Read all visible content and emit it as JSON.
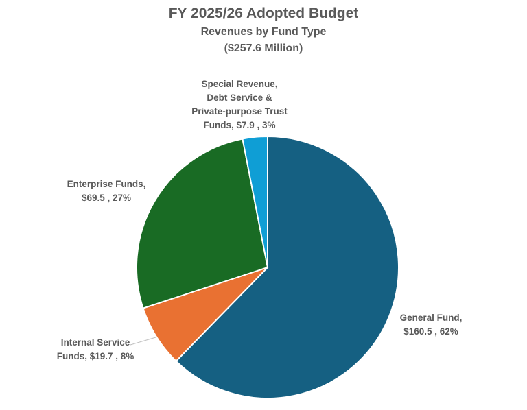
{
  "chart_data": {
    "type": "pie",
    "title": "FY 2025/26 Adopted Budget",
    "subtitle": "Revenues by Fund Type",
    "subtitle2": "($257.6 Million)",
    "slices": [
      {
        "label_lines": [
          "General Fund,",
          "$160.5 , 62%"
        ],
        "name": "General Fund",
        "value": 160.5,
        "percent": 62,
        "color": "#156082"
      },
      {
        "label_lines": [
          "Internal Service",
          "Funds, $19.7 , 8%"
        ],
        "name": "Internal Service Funds",
        "value": 19.7,
        "percent": 8,
        "color": "#E97132"
      },
      {
        "label_lines": [
          "Enterprise Funds,",
          "$69.5 , 27%"
        ],
        "name": "Enterprise Funds",
        "value": 69.5,
        "percent": 27,
        "color": "#196B24"
      },
      {
        "label_lines": [
          "Special Revenue,",
          "Debt Service &",
          "Private-purpose Trust",
          "Funds, $7.9 , 3%"
        ],
        "name": "Special Revenue, Debt Service & Private-purpose Trust Funds",
        "value": 7.9,
        "percent": 3,
        "color": "#0F9ED5"
      }
    ]
  }
}
